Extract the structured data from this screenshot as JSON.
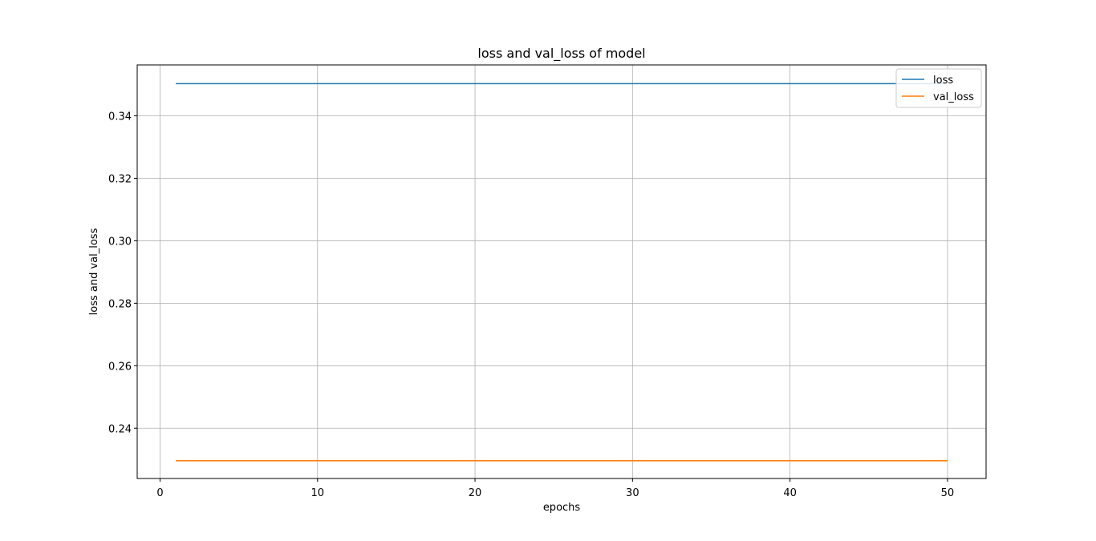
{
  "chart_data": {
    "type": "line",
    "title": "loss and val_loss of model",
    "xlabel": "epochs",
    "ylabel": "loss and val_loss",
    "xlim": [
      -1.45,
      52.45
    ],
    "ylim": [
      0.2239,
      0.3563
    ],
    "xticks": [
      0,
      10,
      20,
      30,
      40,
      50
    ],
    "xtick_labels": [
      "0",
      "10",
      "20",
      "30",
      "40",
      "50"
    ],
    "yticks": [
      0.24,
      0.26,
      0.28,
      0.3,
      0.32,
      0.34
    ],
    "ytick_labels": [
      "0.24",
      "0.26",
      "0.28",
      "0.30",
      "0.32",
      "0.34"
    ],
    "grid": true,
    "legend_position": "top-right",
    "x": [
      1,
      50
    ],
    "series": [
      {
        "name": "loss",
        "color": "#1f77b4",
        "values": [
          0.3503,
          0.3503
        ]
      },
      {
        "name": "val_loss",
        "color": "#ff7f0e",
        "values": [
          0.2296,
          0.2296
        ]
      }
    ]
  }
}
